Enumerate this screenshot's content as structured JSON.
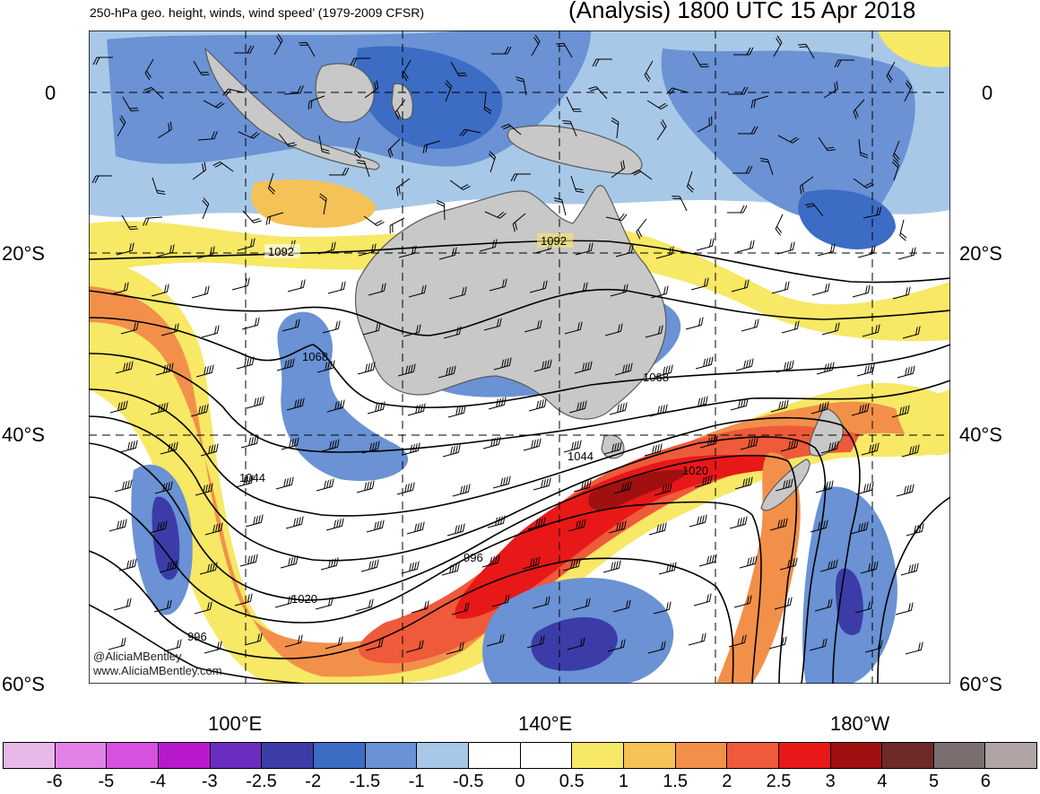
{
  "header": {
    "title_left": "250-hPa geo. height, winds, wind speed’ (1979-2009 CFSR)",
    "title_right": "(Analysis) 1800 UTC 15 Apr 2018"
  },
  "axes": {
    "lat_labels_left": [
      "0",
      "20°S",
      "40°S",
      "60°S"
    ],
    "lat_labels_right": [
      "0",
      "20°S",
      "40°S",
      "60°S"
    ],
    "lon_labels": [
      "100°E",
      "140°E",
      "180°W"
    ]
  },
  "contours": {
    "labels": [
      "1092",
      "1092",
      "1068",
      "1068",
      "1044",
      "1044",
      "1020",
      "1020",
      "996",
      "996"
    ]
  },
  "credit": {
    "handle": "@AliciaMBentley",
    "site": "www.AliciaMBentley.com"
  },
  "colorbar": {
    "labels": [
      "-6",
      "-5",
      "-4",
      "-3",
      "-2.5",
      "-2",
      "-1.5",
      "-1",
      "-0.5",
      "0",
      "0.5",
      "1",
      "1.5",
      "2",
      "2.5",
      "3",
      "4",
      "5",
      "6"
    ],
    "colors": [
      "#e8b8e8",
      "#e282e8",
      "#d850e0",
      "#b818cc",
      "#6a2dbf",
      "#3c3ca8",
      "#3c6cc4",
      "#6a92d4",
      "#a8c8e8",
      "#ffffff",
      "#ffffff",
      "#f7e866",
      "#f4c257",
      "#f2904a",
      "#ee5a3a",
      "#e81818",
      "#a01010",
      "#6e2a28",
      "#7a6e6e",
      "#b0a4a4"
    ]
  },
  "map_colors": {
    "land": "#c8c8c8",
    "coast": "#5a5a5a"
  }
}
